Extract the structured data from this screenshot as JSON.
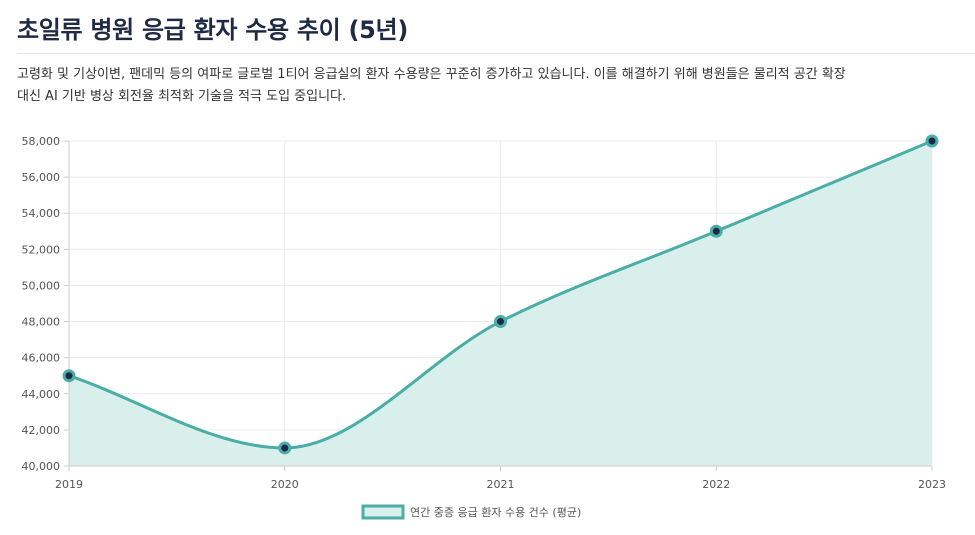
{
  "header": {
    "title": "초일류 병원 응급 환자 수용 추이 (5년)",
    "description_line1": "고령화 및 기상이변, 팬데믹 등의 여파로 글로벌 1티어 응급실의 환자 수용량은 꾸준히 증가하고 있습니다. 이를 해결하기 위해 병원들은 물리적 공간 확장",
    "description_line2": "대신 AI 기반 병상 회전율 최적화 기술을 적극 도입 중입니다."
  },
  "colors": {
    "line": "#4aaea6",
    "fill": "#d9efeb",
    "point_fill": "#1b2a4a",
    "grid": "#ececec",
    "axis": "#cccccc"
  },
  "chart_data": {
    "type": "area",
    "categories": [
      "2019",
      "2020",
      "2021",
      "2022",
      "2023"
    ],
    "series": [
      {
        "name": "연간 중증 응급 환자 수용 건수 (평균)",
        "values": [
          45000,
          41000,
          48000,
          53000,
          58000
        ]
      }
    ],
    "ylim": [
      40000,
      58000
    ],
    "yticks": [
      40000,
      42000,
      44000,
      46000,
      48000,
      50000,
      52000,
      54000,
      56000,
      58000
    ],
    "ytick_labels": [
      "40,000",
      "42,000",
      "44,000",
      "46,000",
      "48,000",
      "50,000",
      "52,000",
      "54,000",
      "56,000",
      "58,000"
    ],
    "grid": true,
    "legend_position": "bottom-center",
    "title": "초일류 병원 응급 환자 수용 추이 (5년)",
    "xlabel": "",
    "ylabel": ""
  }
}
